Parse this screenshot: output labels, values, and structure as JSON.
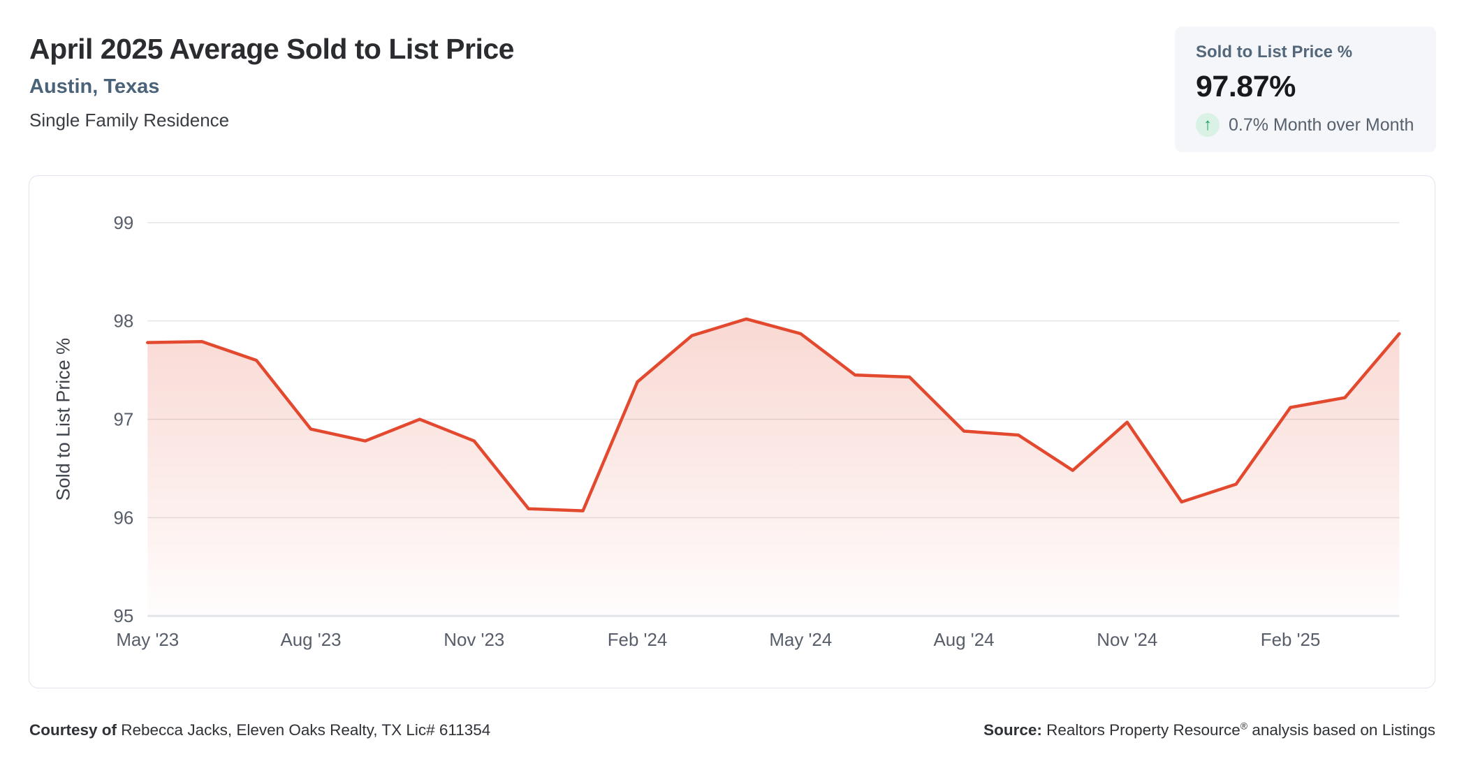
{
  "header": {
    "title": "April 2025 Average Sold to List Price",
    "location": "Austin, Texas",
    "property_type": "Single Family Residence"
  },
  "stat_card": {
    "label": "Sold to List Price %",
    "value": "97.87%",
    "arrow_icon": "↑",
    "mom_text": "0.7% Month over Month",
    "arrow_color": "#1f9e63",
    "arrow_bg_color": "#d9f2e5"
  },
  "footer": {
    "courtesy_label": "Courtesy of",
    "courtesy_text": " Rebecca Jacks, Eleven Oaks Realty, TX Lic# 611354",
    "source_label": "Source:",
    "source_name": " Realtors Property Resource",
    "source_reg": "®",
    "source_rest": " analysis based on Listings"
  },
  "chart_data": {
    "type": "area",
    "title": "April 2025 Average Sold to List Price",
    "ylabel": "Sold to List Price %",
    "xlabel": "",
    "ylim": [
      95,
      99
    ],
    "y_ticks": [
      95,
      96,
      97,
      98,
      99
    ],
    "x_tick_interval": 3,
    "grid": "horizontal",
    "legend": "none",
    "categories": [
      "May '23",
      "Jun '23",
      "Jul '23",
      "Aug '23",
      "Sep '23",
      "Oct '23",
      "Nov '23",
      "Dec '23",
      "Jan '24",
      "Feb '24",
      "Mar '24",
      "Apr '24",
      "May '24",
      "Jun '24",
      "Jul '24",
      "Aug '24",
      "Sep '24",
      "Oct '24",
      "Nov '24",
      "Dec '24",
      "Jan '25",
      "Feb '25",
      "Mar '25",
      "Apr '25"
    ],
    "values": [
      97.78,
      97.79,
      97.6,
      96.9,
      96.78,
      97.0,
      96.78,
      96.09,
      96.07,
      97.38,
      97.85,
      98.02,
      97.87,
      97.45,
      97.43,
      96.88,
      96.84,
      96.48,
      96.97,
      96.16,
      96.34,
      97.12,
      97.22,
      97.87
    ],
    "line_color": "#e2492f",
    "fill_top_color": "rgba(226,73,47,0.21)",
    "fill_bottom_color": "rgba(226,73,47,0.01)",
    "gridline_color": "#e5e5e5",
    "axis_line_color": "#e2e6ea",
    "tick_label_color": "#575e69",
    "axis_title_color": "#3f444c"
  }
}
